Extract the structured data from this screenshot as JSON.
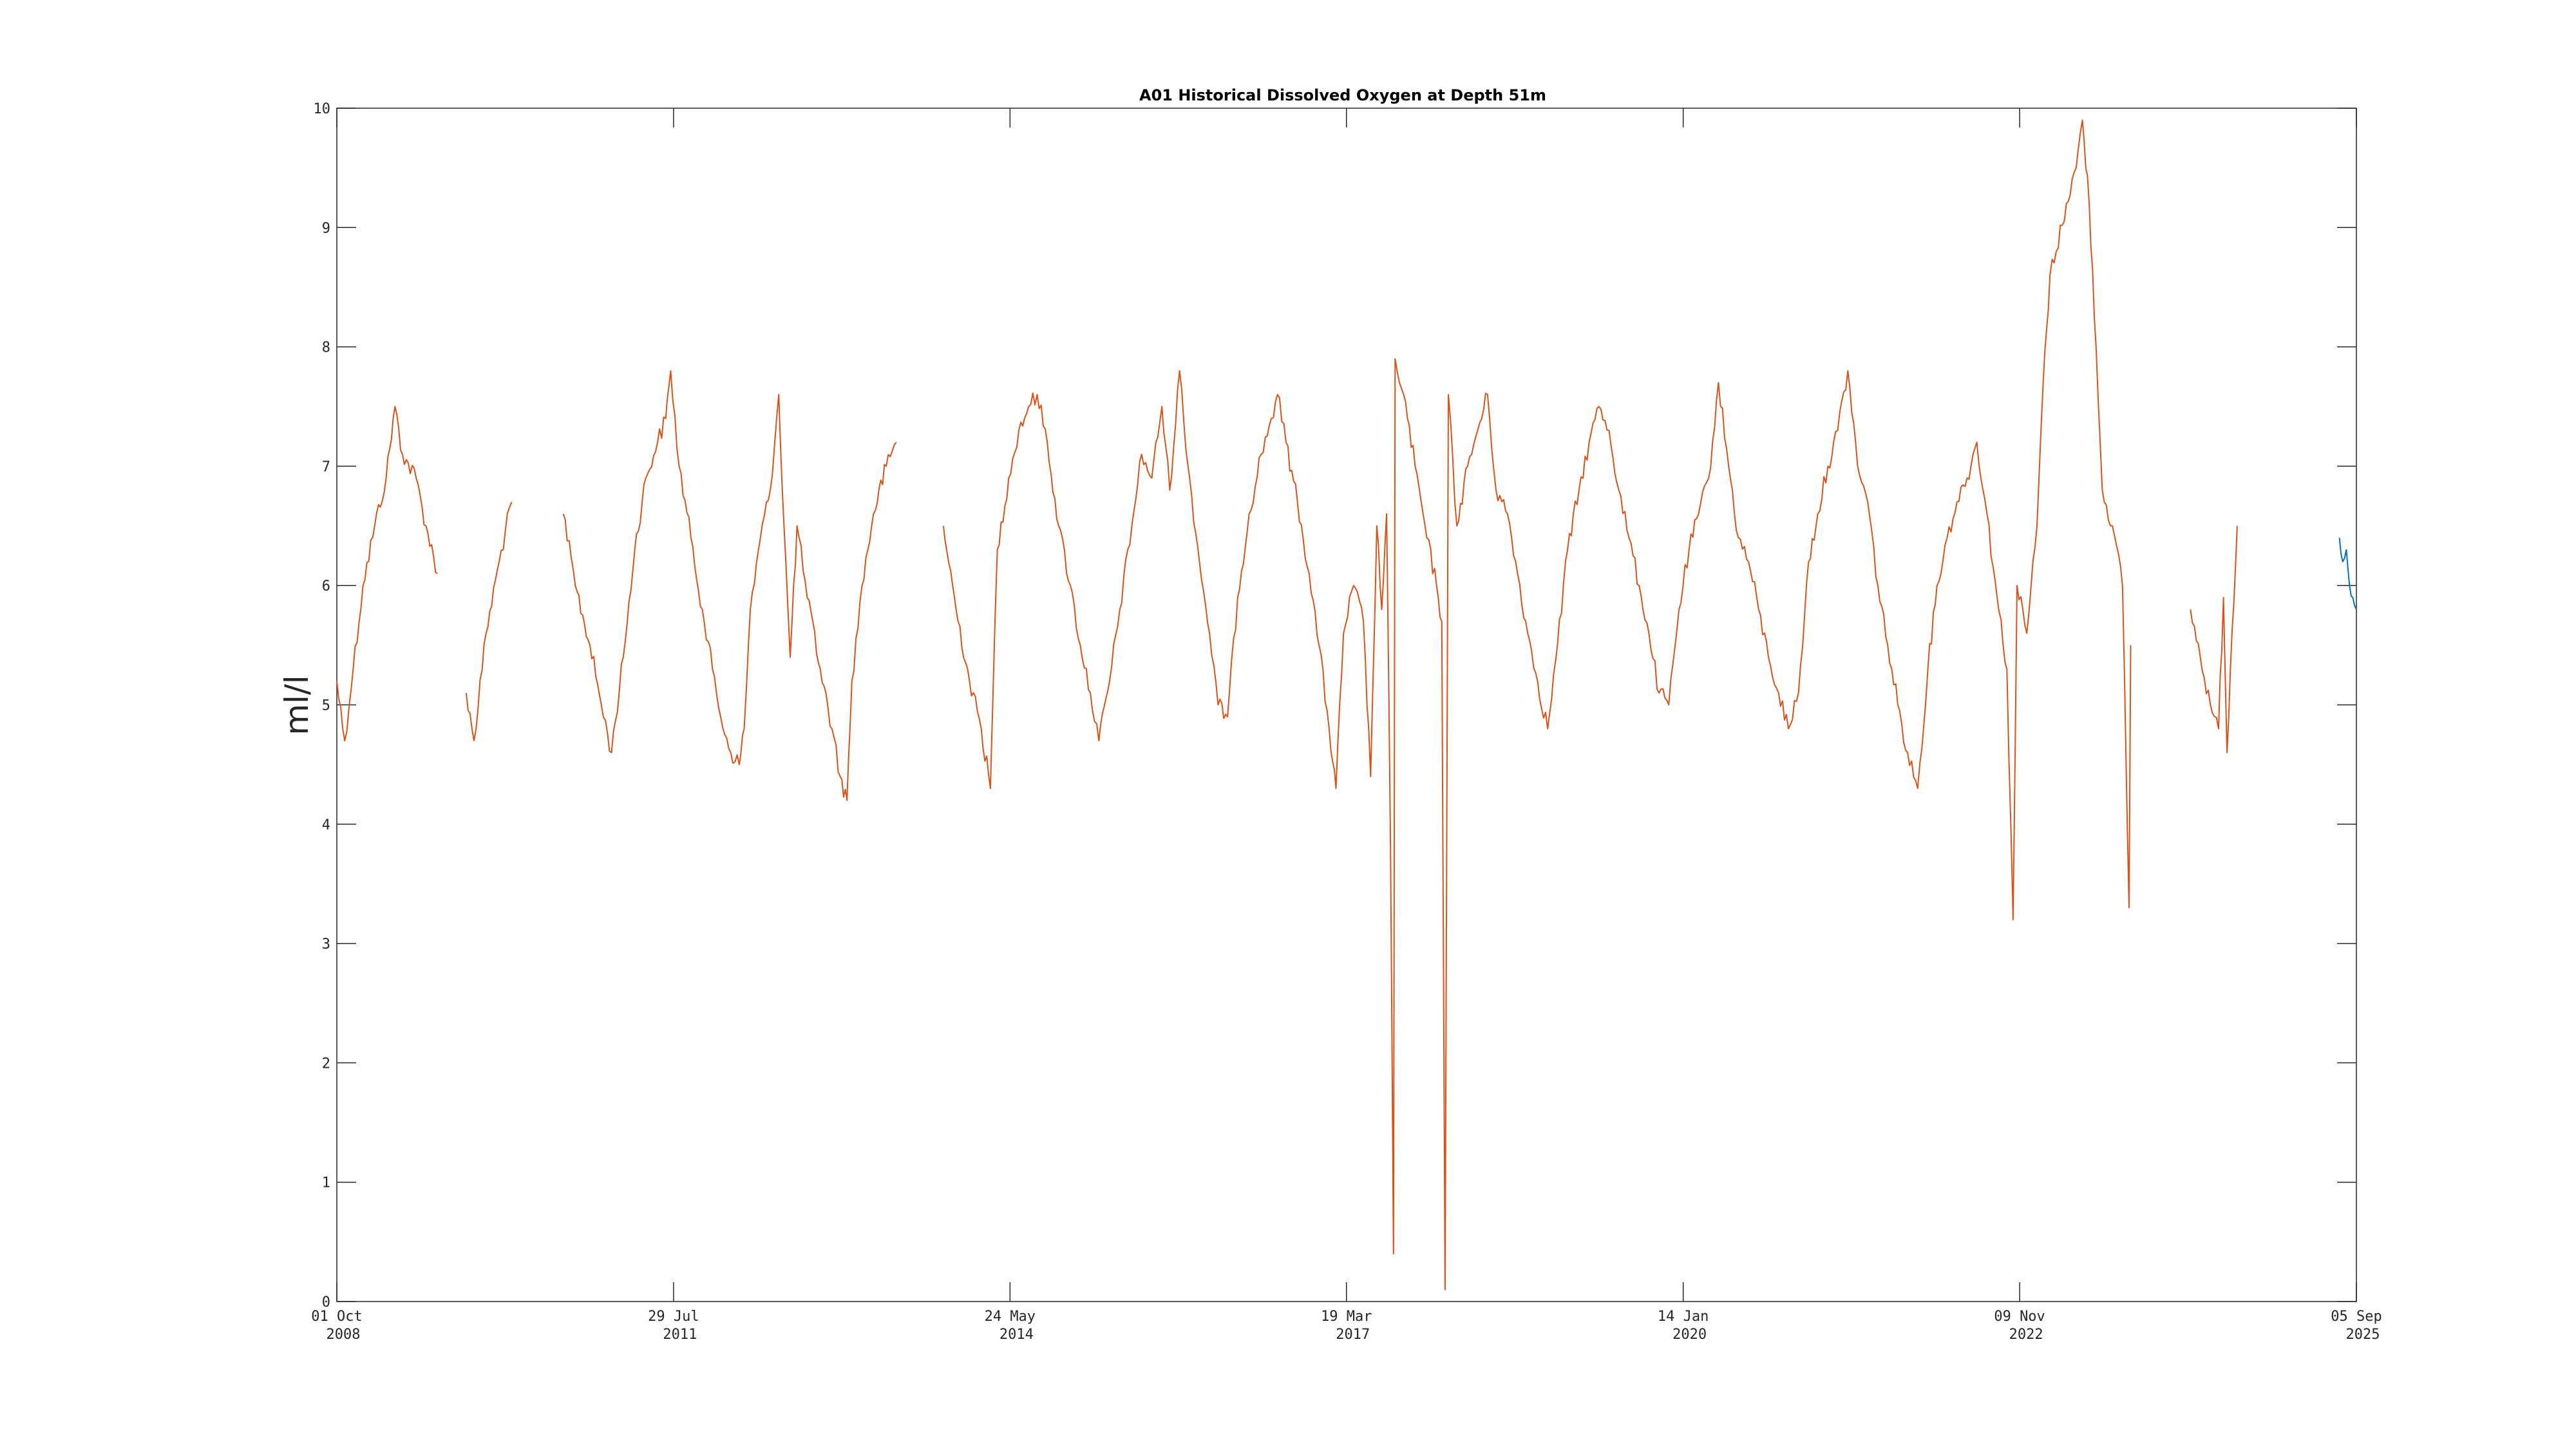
{
  "chart_data": {
    "type": "line",
    "title": "A01 Historical Dissolved Oxygen at Depth 51m",
    "xlabel": "",
    "ylabel": "ml/l",
    "xlim": [
      "2008-10-01",
      "2025-09-05"
    ],
    "ylim": [
      0,
      10
    ],
    "grid": false,
    "x_ticks": [
      {
        "date": "2008-10-01",
        "label_day": "01 Oct",
        "label_year": "2008"
      },
      {
        "date": "2011-07-29",
        "label_day": "29 Jul",
        "label_year": "2011"
      },
      {
        "date": "2014-05-24",
        "label_day": "24 May",
        "label_year": "2014"
      },
      {
        "date": "2017-03-19",
        "label_day": "19 Mar",
        "label_year": "2017"
      },
      {
        "date": "2020-01-14",
        "label_day": "14 Jan",
        "label_year": "2020"
      },
      {
        "date": "2022-11-09",
        "label_day": "09 Nov",
        "label_year": "2022"
      },
      {
        "date": "2025-09-05",
        "label_day": "05 Sep",
        "label_year": "2025"
      }
    ],
    "y_ticks": [
      "0",
      "1",
      "2",
      "3",
      "4",
      "5",
      "6",
      "7",
      "8",
      "9",
      "10"
    ],
    "series": [
      {
        "color": "#D95319",
        "segments": [
          [
            [
              "2008-10-01",
              5.2
            ],
            [
              "2008-10-25",
              4.7
            ],
            [
              "2008-11-20",
              5.3
            ],
            [
              "2008-12-20",
              6.0
            ],
            [
              "2009-01-25",
              6.5
            ],
            [
              "2009-03-01",
              6.9
            ],
            [
              "2009-03-28",
              7.5
            ],
            [
              "2009-04-20",
              7.1
            ],
            [
              "2009-06-01",
              6.9
            ],
            [
              "2009-07-01",
              6.5
            ],
            [
              "2009-08-05",
              6.1
            ]
          ],
          [
            [
              "2009-11-01",
              5.1
            ],
            [
              "2009-11-25",
              4.7
            ],
            [
              "2010-01-01",
              5.6
            ],
            [
              "2010-02-10",
              6.2
            ],
            [
              "2010-03-20",
              6.7
            ]
          ],
          [
            [
              "2010-08-25",
              6.6
            ],
            [
              "2010-10-01",
              6.0
            ],
            [
              "2010-11-15",
              5.5
            ],
            [
              "2010-12-20",
              5.0
            ],
            [
              "2011-01-20",
              4.6
            ],
            [
              "2011-02-25",
              5.4
            ],
            [
              "2011-04-01",
              6.3
            ],
            [
              "2011-05-05",
              6.9
            ],
            [
              "2011-06-10",
              7.2
            ],
            [
              "2011-07-05",
              7.4
            ],
            [
              "2011-07-20",
              7.8
            ],
            [
              "2011-08-15",
              7.0
            ],
            [
              "2011-09-20",
              6.4
            ],
            [
              "2011-10-25",
              5.8
            ],
            [
              "2011-11-25",
              5.3
            ],
            [
              "2011-12-20",
              4.9
            ],
            [
              "2012-01-20",
              4.6
            ],
            [
              "2012-02-15",
              4.5
            ],
            [
              "2012-03-01",
              4.8
            ],
            [
              "2012-03-20",
              5.8
            ],
            [
              "2012-04-20",
              6.4
            ],
            [
              "2012-05-20",
              6.8
            ],
            [
              "2012-06-15",
              7.6
            ],
            [
              "2012-07-01",
              6.5
            ],
            [
              "2012-07-20",
              5.4
            ],
            [
              "2012-08-10",
              6.5
            ],
            [
              "2012-09-10",
              5.9
            ],
            [
              "2012-10-20",
              5.3
            ],
            [
              "2012-11-25",
              4.8
            ],
            [
              "2012-12-20",
              4.4
            ],
            [
              "2013-01-10",
              4.2
            ],
            [
              "2013-01-25",
              5.2
            ],
            [
              "2013-02-25",
              6.0
            ],
            [
              "2013-04-01",
              6.6
            ],
            [
              "2013-05-10",
              7.0
            ],
            [
              "2013-06-10",
              7.2
            ]
          ],
          [
            [
              "2013-11-01",
              6.5
            ],
            [
              "2013-12-10",
              5.8
            ],
            [
              "2014-01-20",
              5.2
            ],
            [
              "2014-02-25",
              4.8
            ],
            [
              "2014-03-25",
              4.3
            ],
            [
              "2014-04-01",
              5.0
            ],
            [
              "2014-04-15",
              6.3
            ],
            [
              "2014-05-20",
              6.9
            ],
            [
              "2014-06-20",
              7.3
            ],
            [
              "2014-07-20",
              7.5
            ],
            [
              "2014-08-15",
              7.6
            ],
            [
              "2014-09-15",
              7.2
            ],
            [
              "2014-10-20",
              6.5
            ],
            [
              "2014-11-25",
              6.0
            ],
            [
              "2014-12-25",
              5.5
            ],
            [
              "2015-01-25",
              5.1
            ],
            [
              "2015-02-20",
              4.7
            ],
            [
              "2015-03-25",
              5.2
            ],
            [
              "2015-04-25",
              5.8
            ],
            [
              "2015-06-01",
              6.5
            ],
            [
              "2015-07-01",
              7.1
            ],
            [
              "2015-08-01",
              6.9
            ],
            [
              "2015-09-01",
              7.5
            ],
            [
              "2015-09-25",
              6.8
            ],
            [
              "2015-10-25",
              7.8
            ],
            [
              "2015-11-20",
              7.0
            ],
            [
              "2015-12-25",
              6.2
            ],
            [
              "2016-01-25",
              5.6
            ],
            [
              "2016-02-20",
              5.0
            ],
            [
              "2016-03-20",
              4.9
            ],
            [
              "2016-04-20",
              5.9
            ],
            [
              "2016-05-25",
              6.6
            ],
            [
              "2016-07-01",
              7.1
            ],
            [
              "2016-08-01",
              7.4
            ],
            [
              "2016-08-20",
              7.6
            ],
            [
              "2016-09-15",
              7.2
            ],
            [
              "2016-10-20",
              6.7
            ],
            [
              "2016-11-25",
              6.1
            ],
            [
              "2016-12-25",
              5.5
            ],
            [
              "2017-01-25",
              4.8
            ],
            [
              "2017-02-15",
              4.3
            ],
            [
              "2017-03-10",
              5.6
            ],
            [
              "2017-04-10",
              6.0
            ],
            [
              "2017-05-10",
              5.7
            ],
            [
              "2017-06-01",
              4.4
            ],
            [
              "2017-06-20",
              6.5
            ],
            [
              "2017-07-05",
              5.8
            ],
            [
              "2017-07-20",
              6.6
            ],
            [
              "2017-08-01",
              3.8
            ],
            [
              "2017-08-10",
              0.4
            ],
            [
              "2017-08-15",
              7.9
            ],
            [
              "2017-09-10",
              7.6
            ],
            [
              "2017-10-15",
              7.0
            ],
            [
              "2017-11-20",
              6.4
            ],
            [
              "2017-12-20",
              6.0
            ],
            [
              "2018-01-05",
              5.7
            ],
            [
              "2018-01-15",
              0.1
            ],
            [
              "2018-01-25",
              7.6
            ],
            [
              "2018-02-20",
              6.5
            ],
            [
              "2018-03-25",
              7.0
            ],
            [
              "2018-04-25",
              7.3
            ],
            [
              "2018-05-25",
              7.6
            ],
            [
              "2018-06-20",
              6.8
            ],
            [
              "2018-07-25",
              6.6
            ],
            [
              "2018-08-25",
              6.1
            ],
            [
              "2018-09-25",
              5.6
            ],
            [
              "2018-10-25",
              5.2
            ],
            [
              "2018-11-25",
              4.8
            ],
            [
              "2018-12-25",
              5.5
            ],
            [
              "2019-01-25",
              6.3
            ],
            [
              "2019-03-01",
              6.8
            ],
            [
              "2019-04-01",
              7.2
            ],
            [
              "2019-05-01",
              7.5
            ],
            [
              "2019-06-01",
              7.3
            ],
            [
              "2019-07-01",
              6.8
            ],
            [
              "2019-08-01",
              6.4
            ],
            [
              "2019-09-01",
              6.0
            ],
            [
              "2019-10-01",
              5.6
            ],
            [
              "2019-11-01",
              5.1
            ],
            [
              "2019-12-01",
              5.0
            ],
            [
              "2020-01-01",
              5.8
            ],
            [
              "2020-02-01",
              6.3
            ],
            [
              "2020-03-01",
              6.6
            ],
            [
              "2020-04-01",
              6.9
            ],
            [
              "2020-05-01",
              7.7
            ],
            [
              "2020-06-01",
              7.0
            ],
            [
              "2020-07-01",
              6.4
            ],
            [
              "2020-08-01",
              6.2
            ],
            [
              "2020-09-01",
              5.8
            ],
            [
              "2020-10-01",
              5.4
            ],
            [
              "2020-11-01",
              5.1
            ],
            [
              "2020-12-01",
              4.8
            ],
            [
              "2021-01-01",
              5.1
            ],
            [
              "2021-02-01",
              6.2
            ],
            [
              "2021-03-01",
              6.6
            ],
            [
              "2021-04-01",
              7.0
            ],
            [
              "2021-05-01",
              7.3
            ],
            [
              "2021-06-01",
              7.8
            ],
            [
              "2021-07-01",
              7.0
            ],
            [
              "2021-08-01",
              6.7
            ],
            [
              "2021-09-01",
              6.0
            ],
            [
              "2021-10-01",
              5.5
            ],
            [
              "2021-11-01",
              5.0
            ],
            [
              "2021-12-01",
              4.6
            ],
            [
              "2022-01-01",
              4.3
            ],
            [
              "2022-02-01",
              5.3
            ],
            [
              "2022-03-01",
              6.0
            ],
            [
              "2022-04-01",
              6.4
            ],
            [
              "2022-05-01",
              6.7
            ],
            [
              "2022-06-01",
              6.9
            ],
            [
              "2022-07-01",
              7.2
            ],
            [
              "2022-08-01",
              6.6
            ],
            [
              "2022-09-01",
              5.9
            ],
            [
              "2022-10-01",
              5.3
            ],
            [
              "2022-10-20",
              3.2
            ],
            [
              "2022-11-01",
              6.0
            ],
            [
              "2022-12-01",
              5.6
            ],
            [
              "2023-01-01",
              6.5
            ],
            [
              "2023-01-20",
              7.7
            ],
            [
              "2023-02-10",
              8.6
            ],
            [
              "2023-03-01",
              8.8
            ],
            [
              "2023-04-01",
              9.2
            ],
            [
              "2023-05-01",
              9.5
            ],
            [
              "2023-05-20",
              9.9
            ],
            [
              "2023-06-10",
              9.2
            ],
            [
              "2023-07-01",
              8.0
            ],
            [
              "2023-07-20",
              6.8
            ],
            [
              "2023-08-20",
              6.5
            ],
            [
              "2023-09-20",
              6.0
            ],
            [
              "2023-10-10",
              3.3
            ],
            [
              "2023-10-15",
              5.5
            ]
          ],
          [
            [
              "2024-04-15",
              5.8
            ],
            [
              "2024-05-15",
              5.4
            ],
            [
              "2024-06-15",
              5.0
            ],
            [
              "2024-07-10",
              4.8
            ],
            [
              "2024-07-25",
              5.9
            ],
            [
              "2024-08-05",
              4.6
            ],
            [
              "2024-08-20",
              5.6
            ],
            [
              "2024-09-05",
              6.5
            ]
          ]
        ]
      },
      {
        "color": "#0072BD",
        "segments": [
          [
            [
              "2025-07-15",
              6.4
            ],
            [
              "2025-07-25",
              6.2
            ],
            [
              "2025-08-05",
              6.3
            ],
            [
              "2025-08-15",
              6.0
            ],
            [
              "2025-08-25",
              5.9
            ],
            [
              "2025-09-05",
              5.8
            ]
          ]
        ]
      }
    ]
  }
}
